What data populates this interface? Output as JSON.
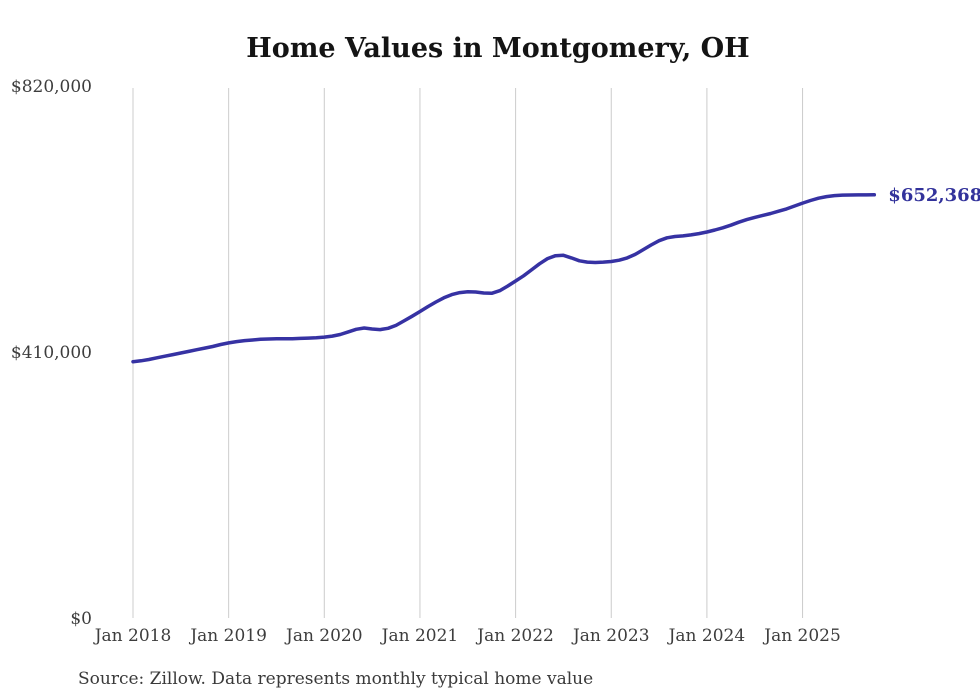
{
  "title": "Home Values in Montgomery, OH",
  "end_label": "$652,368",
  "source_note": "Source: Zillow. Data represents monthly typical home value",
  "colors": {
    "line": "#3632a3",
    "end_label": "#32329b",
    "gridline": "#cccccc",
    "background": "#ffffff"
  },
  "chart_data": {
    "type": "line",
    "title": "Home Values in Montgomery, OH",
    "x_unit": "month",
    "x_start": "Jan 2018",
    "x_end": "Oct 2025",
    "ylim": [
      0,
      820000
    ],
    "grid": "vertical-only",
    "legend": "none",
    "y_ticks": [
      {
        "label": "$820,000",
        "value": 820000
      },
      {
        "label": "$410,000",
        "value": 410000
      },
      {
        "label": "$0",
        "value": 0
      }
    ],
    "x_ticks": [
      {
        "label": "Jan 2018",
        "month_index": 0
      },
      {
        "label": "Jan 2019",
        "month_index": 12
      },
      {
        "label": "Jan 2020",
        "month_index": 24
      },
      {
        "label": "Jan 2021",
        "month_index": 36
      },
      {
        "label": "Jan 2022",
        "month_index": 48
      },
      {
        "label": "Jan 2023",
        "month_index": 60
      },
      {
        "label": "Jan 2024",
        "month_index": 72
      },
      {
        "label": "Jan 2025",
        "month_index": 84
      }
    ],
    "series": [
      {
        "name": "Typical home value",
        "start_month": "2018-01",
        "final_value": 652368,
        "values": [
          395000,
          396500,
          398500,
          401000,
          403500,
          406000,
          408500,
          411000,
          413500,
          416000,
          418500,
          421500,
          424000,
          426000,
          427500,
          428500,
          429500,
          430000,
          430500,
          430500,
          430500,
          431000,
          431500,
          432000,
          433000,
          434500,
          437000,
          441000,
          445000,
          447000,
          445500,
          444500,
          446500,
          451000,
          458000,
          465000,
          472500,
          480000,
          487000,
          493500,
          498500,
          501500,
          503000,
          502500,
          501000,
          500500,
          504500,
          511500,
          519500,
          527500,
          536500,
          546000,
          554000,
          558500,
          559000,
          555000,
          550500,
          548500,
          548000,
          548500,
          549500,
          551500,
          555000,
          560500,
          567500,
          575000,
          581500,
          586000,
          588000,
          589000,
          590500,
          592500,
          595000,
          598000,
          601500,
          605500,
          610000,
          614000,
          617500,
          620500,
          623500,
          627000,
          630500,
          635000,
          639500,
          643500,
          647000,
          649500,
          651000,
          651800,
          652000,
          652100,
          652200,
          652368
        ]
      }
    ]
  }
}
